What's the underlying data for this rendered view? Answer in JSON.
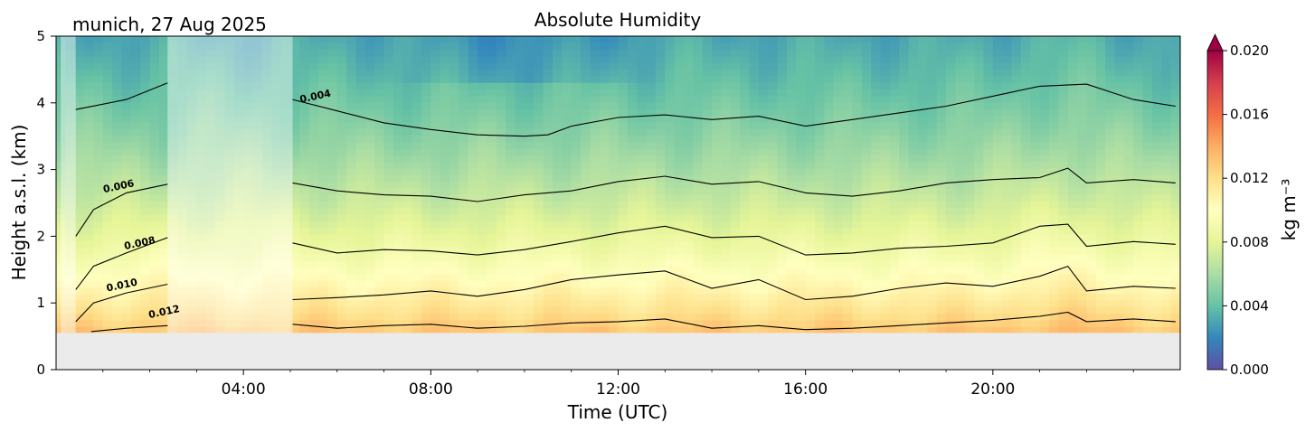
{
  "chart_data": {
    "type": "heatmap",
    "title": "Absolute Humidity",
    "location_date": "munich, 27 Aug 2025",
    "xlabel": "Time (UTC)",
    "ylabel": "Height a.s.l. (km)",
    "xlim": [
      0,
      24
    ],
    "ylim": [
      0,
      5
    ],
    "x_ticks": [
      {
        "value": 4,
        "label": "04:00"
      },
      {
        "value": 8,
        "label": "08:00"
      },
      {
        "value": 12,
        "label": "12:00"
      },
      {
        "value": 16,
        "label": "16:00"
      },
      {
        "value": 20,
        "label": "20:00"
      }
    ],
    "y_ticks": [
      {
        "value": 0,
        "label": "0"
      },
      {
        "value": 1,
        "label": "1"
      },
      {
        "value": 2,
        "label": "2"
      },
      {
        "value": 3,
        "label": "3"
      },
      {
        "value": 4,
        "label": "4"
      },
      {
        "value": 5,
        "label": "5"
      }
    ],
    "no_data_below_km": 0.55,
    "masked_periods_utc": [
      [
        0.1,
        0.42
      ],
      [
        2.38,
        5.05
      ]
    ],
    "colorbar": {
      "label": "kg m⁻³",
      "min": 0.0,
      "max": 0.02,
      "extend": "max",
      "colormap": "Spectral_r",
      "ticks": [
        {
          "value": 0.0,
          "label": "0.000"
        },
        {
          "value": 0.004,
          "label": "0.004"
        },
        {
          "value": 0.008,
          "label": "0.008"
        },
        {
          "value": 0.012,
          "label": "0.012"
        },
        {
          "value": 0.016,
          "label": "0.016"
        },
        {
          "value": 0.02,
          "label": "0.020"
        }
      ]
    },
    "contour_lines": [
      {
        "level": 0.004,
        "label": "0.004",
        "label_at": [
          5.55,
          4.05
        ],
        "x": [
          0.42,
          1.5,
          2.38,
          5.05,
          6,
          7,
          8,
          9,
          10,
          10.5,
          11,
          12,
          13,
          14,
          15,
          16,
          17,
          18,
          19,
          20,
          21,
          22,
          23,
          23.9
        ],
        "y": [
          3.9,
          4.05,
          4.3,
          4.05,
          3.88,
          3.7,
          3.6,
          3.52,
          3.5,
          3.52,
          3.65,
          3.78,
          3.82,
          3.75,
          3.8,
          3.65,
          3.75,
          3.85,
          3.95,
          4.1,
          4.25,
          4.28,
          4.05,
          3.95
        ]
      },
      {
        "level": 0.006,
        "label": "0.006",
        "label_at": [
          1.35,
          2.7
        ],
        "x": [
          0.42,
          0.8,
          1.5,
          2.38,
          5.05,
          6,
          7,
          8,
          9,
          10,
          11,
          12,
          13,
          14,
          15,
          16,
          17,
          18,
          19,
          20,
          21,
          21.6,
          22,
          23,
          23.9
        ],
        "y": [
          2.0,
          2.4,
          2.65,
          2.78,
          2.8,
          2.68,
          2.62,
          2.6,
          2.52,
          2.62,
          2.68,
          2.82,
          2.9,
          2.78,
          2.82,
          2.65,
          2.6,
          2.68,
          2.8,
          2.85,
          2.88,
          3.02,
          2.8,
          2.85,
          2.8
        ]
      },
      {
        "level": 0.008,
        "label": "0.008",
        "label_at": [
          1.8,
          1.85
        ],
        "x": [
          0.42,
          0.8,
          1.5,
          2.38,
          5.05,
          6,
          7,
          8,
          9,
          10,
          11,
          12,
          13,
          14,
          15,
          16,
          17,
          18,
          19,
          20,
          21,
          21.6,
          22,
          23,
          23.9
        ],
        "y": [
          1.2,
          1.55,
          1.75,
          1.98,
          1.9,
          1.75,
          1.8,
          1.78,
          1.72,
          1.8,
          1.92,
          2.05,
          2.15,
          1.98,
          2.0,
          1.72,
          1.75,
          1.82,
          1.85,
          1.9,
          2.15,
          2.18,
          1.85,
          1.92,
          1.88
        ]
      },
      {
        "level": 0.01,
        "label": "0.010",
        "label_at": [
          1.42,
          1.22
        ],
        "x": [
          0.42,
          0.8,
          1.5,
          2.38,
          5.05,
          6,
          7,
          8,
          9,
          10,
          11,
          12,
          13,
          14,
          15,
          16,
          17,
          18,
          19,
          20,
          21,
          21.6,
          22,
          23,
          23.9
        ],
        "y": [
          0.72,
          1.0,
          1.15,
          1.28,
          1.05,
          1.08,
          1.12,
          1.18,
          1.1,
          1.2,
          1.35,
          1.42,
          1.48,
          1.22,
          1.35,
          1.05,
          1.1,
          1.22,
          1.3,
          1.25,
          1.4,
          1.55,
          1.18,
          1.25,
          1.22
        ]
      },
      {
        "level": 0.012,
        "label": "0.012",
        "label_at": [
          2.32,
          0.82
        ],
        "x": [
          0.75,
          1.5,
          2.38,
          5.05,
          6,
          7,
          8,
          9,
          10,
          11,
          12,
          13,
          14,
          15,
          16,
          17,
          18,
          19,
          20,
          21,
          21.6,
          22,
          23,
          23.9
        ],
        "y": [
          0.57,
          0.62,
          0.66,
          0.68,
          0.62,
          0.66,
          0.68,
          0.62,
          0.65,
          0.7,
          0.72,
          0.76,
          0.62,
          0.66,
          0.6,
          0.62,
          0.66,
          0.7,
          0.74,
          0.8,
          0.86,
          0.72,
          0.76,
          0.72
        ]
      }
    ]
  }
}
